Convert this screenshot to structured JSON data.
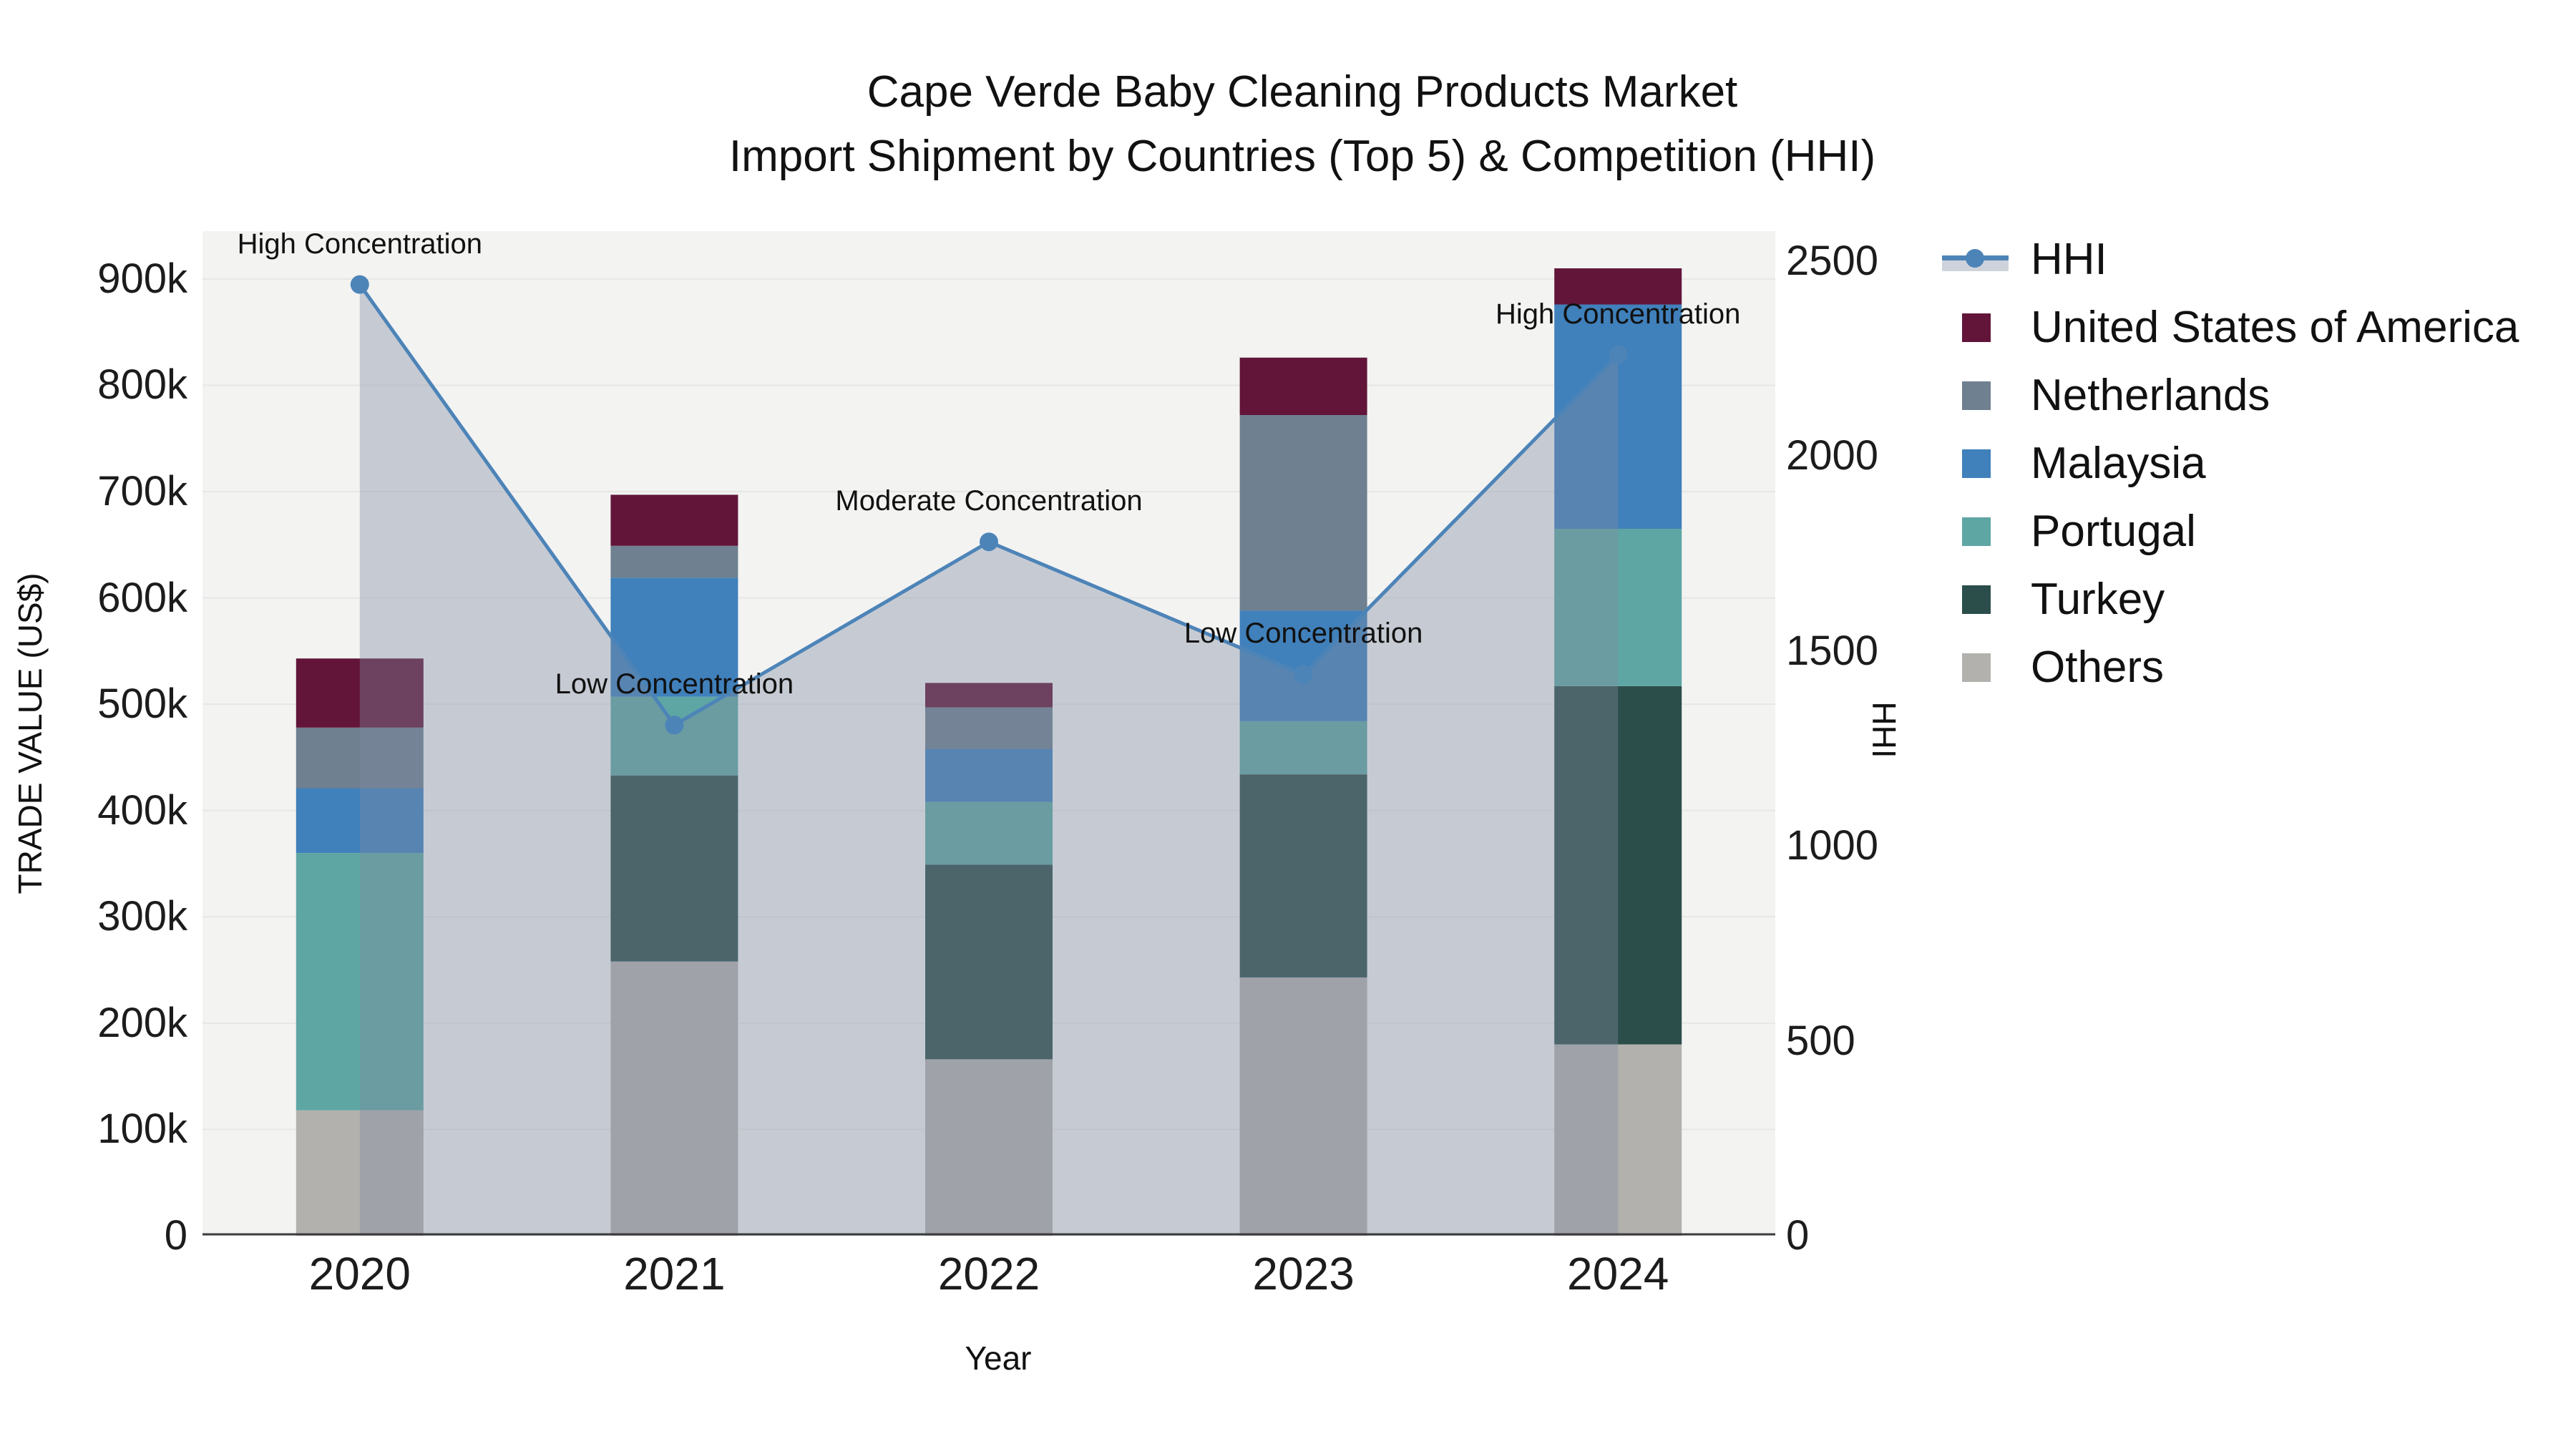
{
  "title": {
    "line1": "Cape Verde Baby Cleaning Products Market",
    "line2": "Import Shipment by Countries (Top 5) & Competition (HHI)"
  },
  "axes": {
    "left_title": "TRADE VALUE (US$)",
    "right_title": "HHI",
    "x_title": "Year"
  },
  "colors": {
    "plot_bg": "#f3f3f2",
    "gridline": "#e7e7e6",
    "axis_line": "#3c3c3c",
    "hhi_line": "#4d84b8",
    "hhi_area": "rgba(125,140,160,0.38)",
    "usa": "#621539",
    "netherlands": "#6f8090",
    "malaysia": "#4080bb",
    "portugal": "#5ea6a4",
    "turkey": "#2c4e4b",
    "others": "#b3b1ae"
  },
  "legend": {
    "items": [
      {
        "label": "HHI",
        "type": "line",
        "color": "#4d84b8",
        "band_color": "#ced3db"
      },
      {
        "label": "United States of America",
        "type": "swatch",
        "color": "#621539"
      },
      {
        "label": "Netherlands",
        "type": "swatch",
        "color": "#6f8090"
      },
      {
        "label": "Malaysia",
        "type": "swatch",
        "color": "#4080bb"
      },
      {
        "label": "Portugal",
        "type": "swatch",
        "color": "#5ea6a4"
      },
      {
        "label": "Turkey",
        "type": "swatch",
        "color": "#2c4e4b"
      },
      {
        "label": "Others",
        "type": "swatch",
        "color": "#b3b1ae"
      }
    ]
  },
  "chart_data": {
    "type": "bar",
    "subtype": "stacked bars (left axis) + line with area fill (right axis)",
    "categories": [
      "2020",
      "2021",
      "2022",
      "2023",
      "2024"
    ],
    "units": "US$ thousands (left axis), HHI index (right axis)",
    "series": [
      {
        "name": "Others",
        "axis": "left",
        "color": "#b3b1ae",
        "values": [
          118,
          258,
          166,
          243,
          180
        ]
      },
      {
        "name": "Turkey",
        "axis": "left",
        "color": "#2c4e4b",
        "values": [
          0,
          175,
          183,
          191,
          337
        ]
      },
      {
        "name": "Portugal",
        "axis": "left",
        "color": "#5ea6a4",
        "values": [
          242,
          74,
          59,
          50,
          148
        ]
      },
      {
        "name": "Malaysia",
        "axis": "left",
        "color": "#4080bb",
        "values": [
          61,
          112,
          50,
          104,
          211
        ]
      },
      {
        "name": "Netherlands",
        "axis": "left",
        "color": "#6f8090",
        "values": [
          57,
          30,
          39,
          184,
          0
        ]
      },
      {
        "name": "United States of America",
        "axis": "left",
        "color": "#621539",
        "values": [
          65,
          48,
          23,
          54,
          34
        ]
      }
    ],
    "bar_totals": [
      543,
      697,
      520,
      826,
      910
    ],
    "hhi": {
      "name": "HHI",
      "axis": "right",
      "color": "#4d84b8",
      "values": [
        2440,
        1310,
        1780,
        1440,
        2260
      ]
    },
    "annotations": [
      {
        "category": "2020",
        "text": "High Concentration"
      },
      {
        "category": "2021",
        "text": "Low Concentration"
      },
      {
        "category": "2022",
        "text": "Moderate Concentration"
      },
      {
        "category": "2023",
        "text": "Low Concentration"
      },
      {
        "category": "2024",
        "text": "High Concentration"
      }
    ],
    "left_axis": {
      "label": "TRADE VALUE (US$)",
      "range_k": [
        0,
        945
      ],
      "ticks": [
        {
          "v": 0,
          "label": "0"
        },
        {
          "v": 100,
          "label": "100k"
        },
        {
          "v": 200,
          "label": "200k"
        },
        {
          "v": 300,
          "label": "300k"
        },
        {
          "v": 400,
          "label": "400k"
        },
        {
          "v": 500,
          "label": "500k"
        },
        {
          "v": 600,
          "label": "600k"
        },
        {
          "v": 700,
          "label": "700k"
        },
        {
          "v": 800,
          "label": "800k"
        },
        {
          "v": 900,
          "label": "900k"
        }
      ]
    },
    "right_axis": {
      "label": "HHI",
      "range": [
        0,
        2577
      ],
      "ticks": [
        {
          "v": 0,
          "label": "0"
        },
        {
          "v": 500,
          "label": "500"
        },
        {
          "v": 1000,
          "label": "1000"
        },
        {
          "v": 1500,
          "label": "1500"
        },
        {
          "v": 2000,
          "label": "2000"
        },
        {
          "v": 2500,
          "label": "2500"
        }
      ]
    },
    "x_axis": {
      "label": "Year"
    },
    "grid": "horizontal, 100k steps",
    "legend_position": "right"
  }
}
